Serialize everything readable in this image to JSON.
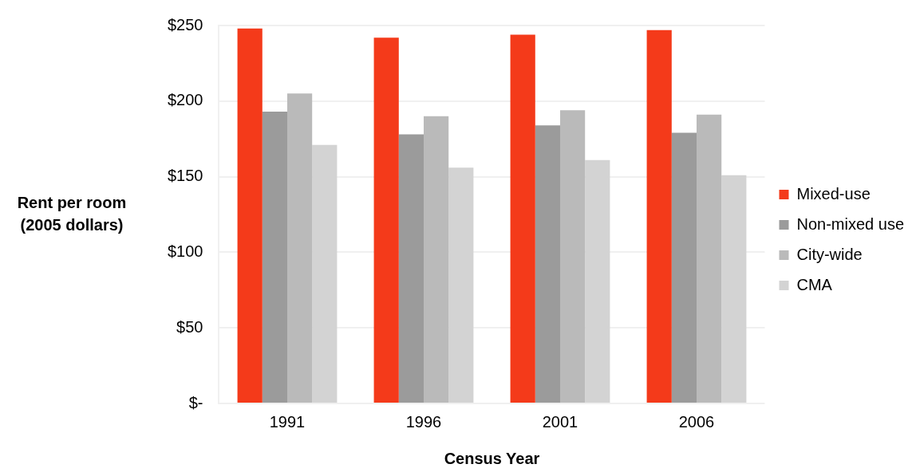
{
  "chart_data": {
    "type": "bar",
    "xlabel": "Census Year",
    "ylabel": "Rent per room\n(2005 dollars)",
    "categories": [
      "1991",
      "1996",
      "2001",
      "2006"
    ],
    "series": [
      {
        "name": "Mixed-use",
        "color": "#f43a1a",
        "values": [
          248,
          242,
          244,
          247
        ]
      },
      {
        "name": "Non-mixed use",
        "color": "#9b9b9b",
        "values": [
          193,
          178,
          184,
          179
        ]
      },
      {
        "name": "City-wide",
        "color": "#bababa",
        "values": [
          205,
          190,
          194,
          191
        ]
      },
      {
        "name": "CMA",
        "color": "#d3d3d3",
        "values": [
          171,
          156,
          161,
          151
        ]
      }
    ],
    "ylim": [
      0,
      250
    ],
    "yticks": [
      {
        "value": 0,
        "label": "$-"
      },
      {
        "value": 50,
        "label": "$50"
      },
      {
        "value": 100,
        "label": "$100"
      },
      {
        "value": 150,
        "label": "$150"
      },
      {
        "value": 200,
        "label": "$200"
      },
      {
        "value": 250,
        "label": "$250"
      }
    ],
    "grid": "y",
    "legend": "right"
  }
}
